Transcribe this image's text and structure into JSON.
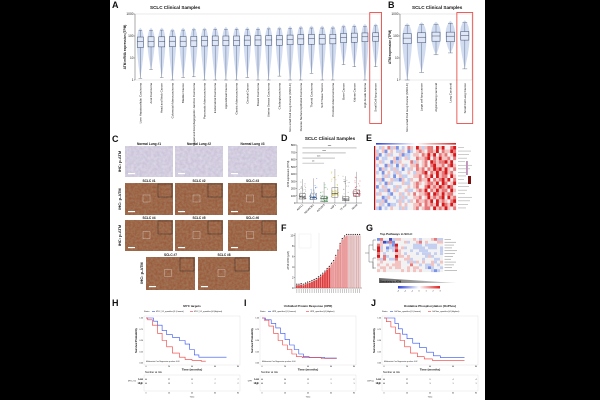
{
  "panels": {
    "A": {
      "label": "A"
    },
    "B": {
      "label": "B"
    },
    "C": {
      "label": "C"
    },
    "D": {
      "label": "D"
    },
    "E": {
      "label": "E"
    },
    "F": {
      "label": "F"
    },
    "G": {
      "label": "G"
    },
    "H": {
      "label": "H"
    },
    "I": {
      "label": "I"
    },
    "J": {
      "label": "J"
    }
  },
  "ihc": {
    "row_label": "IHC: p-ATM",
    "images": [
      {
        "title": "Normal Lung #1",
        "tissue": "normal"
      },
      {
        "title": "Normal Lung #2",
        "tissue": "normal"
      },
      {
        "title": "Normal Lung #3",
        "tissue": "normal"
      },
      {
        "title": "SCLC #1",
        "tissue": "tumor"
      },
      {
        "title": "SCLC #2",
        "tissue": "tumor"
      },
      {
        "title": "SCLC #3",
        "tissue": "tumor"
      },
      {
        "title": "SCLC #4",
        "tissue": "tumor"
      },
      {
        "title": "SCLC #5",
        "tissue": "tumor"
      },
      {
        "title": "SCLC #6",
        "tissue": "tumor"
      },
      {
        "title": "SCLC #7",
        "tissue": "tumor"
      },
      {
        "title": "SCLC #8",
        "tissue": "tumor"
      }
    ]
  },
  "chart_data": [
    {
      "id": "A",
      "type": "box-violin",
      "title": "SCLC Clinical Samples",
      "ylabel": "ATM mRNA expression (TPM)",
      "yscale": "log",
      "ylim": [
        1,
        1000
      ],
      "yticks": [
        "1",
        "10",
        "100",
        "1000"
      ],
      "highlight": "Small Cell lung cancer",
      "highlight_color": "#e53935",
      "categories": [
        "Liver Hepatocellular Carcinoma",
        "Anal Carcinoma",
        "Head and Neck Cancer",
        "Colorectal Adenocarcinoma",
        "Bladder Cancer",
        "Esophageal and Esophagogastric Junction Carcinoma",
        "Pancreatic Adenocarcinoma",
        "Endometrial Carcinoma",
        "Appendiceal Cancer",
        "Gastric Adenocarcinoma",
        "Cervical Cancer",
        "Breast Carcinoma",
        "Uterine Serous Carcinoma",
        "Cholangiocarcinoma",
        "Non-small Cell Lung Cancer (NSCLC)",
        "Ovarian Surface Epithelial Carcinoma",
        "Thyroid Carcinoma",
        "Soft Tissue Tumors",
        "Prostatic Adenocarcinoma",
        "Bone Cancer",
        "Kidney Cancer",
        "High-Grade Glioma",
        "Small Cell lung cancer"
      ],
      "boxes": [
        [
          1.2,
          30,
          55,
          90,
          180
        ],
        [
          3,
          32,
          56,
          92,
          180
        ],
        [
          1.3,
          32,
          57,
          92,
          185
        ],
        [
          1,
          33,
          58,
          94,
          170
        ],
        [
          1.3,
          33,
          58,
          95,
          185
        ],
        [
          1.4,
          34,
          60,
          96,
          190
        ],
        [
          1,
          35,
          62,
          98,
          190
        ],
        [
          1,
          36,
          63,
          100,
          200
        ],
        [
          1,
          36,
          64,
          100,
          200
        ],
        [
          1,
          36,
          64,
          100,
          200
        ],
        [
          1.3,
          37,
          65,
          102,
          200
        ],
        [
          1,
          37,
          66,
          104,
          200
        ],
        [
          1,
          38,
          66,
          104,
          210
        ],
        [
          1.5,
          38,
          67,
          105,
          210
        ],
        [
          1,
          40,
          70,
          110,
          220
        ],
        [
          1,
          42,
          74,
          115,
          230
        ],
        [
          2,
          42,
          75,
          118,
          230
        ],
        [
          1,
          43,
          76,
          118,
          230
        ],
        [
          1,
          44,
          78,
          120,
          230
        ],
        [
          5,
          50,
          85,
          130,
          260
        ],
        [
          4,
          52,
          88,
          135,
          270
        ],
        [
          1,
          55,
          92,
          138,
          270
        ],
        [
          4,
          58,
          95,
          140,
          290
        ]
      ]
    },
    {
      "id": "B",
      "type": "box-violin",
      "title": "SCLC Clinical Samples",
      "ylabel": "ATM expression (TPM)",
      "yscale": "log",
      "ylim": [
        1,
        1000
      ],
      "yticks": [
        "1",
        "10",
        "100",
        "1000"
      ],
      "highlight": "Small Cell Lung Cancer",
      "highlight_color": "#e53935",
      "categories": [
        "Non-small Cell Lung Cancer (NSCLC)",
        "Large cell lung cancer",
        "Atypical lung carcinoid",
        "Lung Carcinoid",
        "Small Cell Lung Cancer"
      ],
      "boxes": [
        [
          1,
          45,
          80,
          130,
          300
        ],
        [
          2.2,
          50,
          88,
          140,
          330
        ],
        [
          14,
          58,
          100,
          150,
          340
        ],
        [
          17,
          55,
          98,
          150,
          380
        ],
        [
          3.2,
          65,
          105,
          160,
          400
        ]
      ]
    },
    {
      "id": "D",
      "type": "box-jitter",
      "title": "SCLC Clinical Samples",
      "ylabel": "ATM expression (TPM)",
      "ylim": [
        0,
        800
      ],
      "yticks": [
        "0",
        "100",
        "200",
        "300",
        "400",
        "500",
        "600",
        "700",
        "800"
      ],
      "categories": [
        "ASCL1",
        "NEUROD1",
        "POU2F3",
        "YAP1",
        "TF-null",
        "Mixed"
      ],
      "colors": [
        "#6d6d6d",
        "#1e6fd9",
        "#2ea043",
        "#c9b400",
        "#8a8a8a",
        "#e0324a"
      ],
      "boxes": [
        [
          0,
          55,
          85,
          130,
          330
        ],
        [
          0,
          50,
          80,
          125,
          340
        ],
        [
          0,
          20,
          60,
          95,
          290
        ],
        [
          0,
          80,
          130,
          210,
          470
        ],
        [
          0,
          30,
          55,
          90,
          370
        ],
        [
          0,
          90,
          130,
          180,
          430
        ]
      ],
      "significance": [
        {
          "from": 0,
          "to": 2,
          "label": "**",
          "y": 550
        },
        {
          "from": 0,
          "to": 3,
          "label": "***",
          "y": 620
        },
        {
          "from": 0,
          "to": 4,
          "label": "***",
          "y": 690
        },
        {
          "from": 0,
          "to": 5,
          "label": "***",
          "y": 760
        }
      ]
    },
    {
      "id": "E",
      "type": "heatmap",
      "scale": [
        -3,
        3
      ],
      "rows": [
        "3243524132354364245536463356",
        "2341343224312345435546354465",
        "4132423341223443546463545346",
        "1322334123423354456354644535",
        "3423314243335243453654556463",
        "2331423134234453453564453564",
        "3142324231324354535465646435",
        "2313432423343244563546456453",
        "3324231342233445354636455364",
        "2413342214324335446354564635",
        "3231423334223454345546365346",
        "1342332423343453356454654653",
        "3224134233422345463546455364",
        "2433213342343534456365464553",
        "3312432324233445346454563645",
        "2241333242324354454636454356",
        "3423122343433445354546365464",
        "2132343324233453455364546435"
      ]
    },
    {
      "id": "F",
      "type": "bar",
      "ylabel": "ATMi IC50 (μM)",
      "ylim": [
        0,
        10.5
      ],
      "yticks": [
        "0",
        "2",
        "4",
        "6",
        "8",
        "10"
      ],
      "values": [
        0.5,
        0.5,
        0.6,
        0.5,
        0.7,
        0.9,
        1.0,
        1.2,
        1.4,
        1.6,
        1.9,
        2.2,
        2.6,
        3.0,
        3.5,
        3.9,
        4.5,
        5.0,
        6.0,
        7.0,
        8.3,
        9.2,
        9.7,
        10,
        10,
        10,
        10,
        10,
        10,
        10
      ]
    },
    {
      "id": "G",
      "type": "heatmap",
      "title": "Top Pathways in SCLC",
      "gradient_label": "Sensitivity to ATMi",
      "scale": [
        -3,
        3
      ],
      "colorbar_ticks": [
        "-3",
        "-2",
        "-1",
        "0",
        "1",
        "2",
        "3"
      ],
      "rows": [
        "1533024433334323334522",
        "3401513334233453433344",
        "5433216333332223222233",
        "6231225342332222322232",
        "6432326433323322233332",
        "5323334432333232223232",
        "6352336443433333242333",
        "4253225334423332333223",
        "3433334433242434334234",
        "4334344433353323224323",
        "3443434433434433212332",
        "4343333343434343332123"
      ]
    },
    {
      "id": "H",
      "type": "kaplan-meier",
      "title": "MYC targets",
      "legend": [
        "Strata",
        "MYC_V1_quartile=Q1 (Lowest)",
        "MYC_V1_quartile=Q4 (Highest)"
      ],
      "xlabel": "Time (months)",
      "ylabel": "Survival Probability",
      "xlim": [
        0,
        80
      ],
      "xticks": [
        "0",
        "20",
        "40",
        "60",
        "80"
      ],
      "yticks": [
        "0.00",
        "0.25",
        "0.50",
        "0.75",
        "1.00"
      ],
      "pvalue_text": "Multivariate Cox Regression p-value: 0.03",
      "risk_title": "Number at risk",
      "risk_var": "MYC_V1",
      "risk_xlabel": "Time",
      "series": [
        {
          "name": "Low",
          "color": "#2f4ff5",
          "points": [
            [
              0,
              1
            ],
            [
              5,
              1
            ],
            [
              8,
              0.93
            ],
            [
              12,
              0.84
            ],
            [
              16,
              0.72
            ],
            [
              20,
              0.63
            ],
            [
              26,
              0.57
            ],
            [
              32,
              0.5
            ],
            [
              36,
              0.42
            ],
            [
              40,
              0.3
            ],
            [
              44,
              0.18
            ],
            [
              48,
              0.13
            ],
            [
              70,
              0.13
            ]
          ],
          "at_risk": [
            "40",
            "27",
            "11",
            "7",
            "7"
          ]
        },
        {
          "name": "High",
          "color": "#f03838",
          "points": [
            [
              0,
              1
            ],
            [
              3,
              0.96
            ],
            [
              8,
              0.84
            ],
            [
              12,
              0.66
            ],
            [
              16,
              0.5
            ],
            [
              20,
              0.36
            ],
            [
              26,
              0.22
            ],
            [
              32,
              0.13
            ],
            [
              36,
              0.08
            ],
            [
              44,
              0.06
            ],
            [
              52,
              0.04
            ]
          ],
          "at_risk": [
            "40",
            "13",
            "3",
            "2",
            "2"
          ]
        }
      ]
    },
    {
      "id": "I",
      "type": "kaplan-meier",
      "title": "Unfolded Protein Response (UPR)",
      "legend": [
        "Strata",
        "UPR_quartile=Q1 (Lowest)",
        "UPR_quartile=Q4 (Highest)"
      ],
      "xlabel": "Time (months)",
      "ylabel": "Survival Probability",
      "xlim": [
        0,
        80
      ],
      "xticks": [
        "0",
        "20",
        "40",
        "60",
        "80"
      ],
      "yticks": [
        "0.00",
        "0.25",
        "0.50",
        "0.75",
        "1.00"
      ],
      "pvalue_text": "Multivariate Cox Regression p-value: 0.04",
      "risk_title": "Number at risk",
      "risk_var": "UPR",
      "risk_xlabel": "Time",
      "series": [
        {
          "name": "Low",
          "color": "#2f4ff5",
          "points": [
            [
              0,
              1
            ],
            [
              6,
              0.96
            ],
            [
              10,
              0.88
            ],
            [
              14,
              0.78
            ],
            [
              18,
              0.66
            ],
            [
              22,
              0.52
            ],
            [
              26,
              0.4
            ],
            [
              30,
              0.3
            ],
            [
              34,
              0.2
            ],
            [
              38,
              0.14
            ],
            [
              44,
              0.12
            ],
            [
              65,
              0.11
            ]
          ],
          "at_risk": [
            "40",
            "30",
            "12",
            "2",
            "2"
          ]
        },
        {
          "name": "High",
          "color": "#f03838",
          "points": [
            [
              0,
              1
            ],
            [
              4,
              0.95
            ],
            [
              8,
              0.82
            ],
            [
              12,
              0.66
            ],
            [
              16,
              0.5
            ],
            [
              20,
              0.4
            ],
            [
              24,
              0.3
            ],
            [
              28,
              0.2
            ],
            [
              32,
              0.14
            ],
            [
              38,
              0.12
            ],
            [
              65,
              0.1
            ]
          ],
          "at_risk": [
            "40",
            "22",
            "8",
            "1",
            "1"
          ]
        }
      ]
    },
    {
      "id": "J",
      "type": "kaplan-meier",
      "title": "Oxidative Phosphorylation (OxPhos)",
      "legend": [
        "Strata",
        "OxPhos_quartile=Q1 (Lowest)",
        "OxPhos_quartile=Q4 (Highest)"
      ],
      "xlabel": "Time (months)",
      "ylabel": "Survival Probability",
      "xlim": [
        0,
        80
      ],
      "xticks": [
        "0",
        "20",
        "40",
        "60",
        "80"
      ],
      "yticks": [
        "0.00",
        "0.25",
        "0.50",
        "0.75",
        "1.00"
      ],
      "pvalue_text": "Multivariate Cox Regression p-value: 0.02",
      "risk_title": "Number at risk",
      "risk_var": "OxPhos",
      "risk_xlabel": "Time",
      "series": [
        {
          "name": "Low",
          "color": "#2f4ff5",
          "points": [
            [
              0,
              1
            ],
            [
              8,
              1
            ],
            [
              11,
              0.88
            ],
            [
              14,
              0.76
            ],
            [
              18,
              0.64
            ],
            [
              22,
              0.54
            ],
            [
              28,
              0.44
            ],
            [
              34,
              0.34
            ],
            [
              40,
              0.24
            ],
            [
              46,
              0.16
            ],
            [
              52,
              0.12
            ],
            [
              70,
              0.12
            ]
          ],
          "at_risk": [
            "40",
            "27",
            "9",
            "4",
            "4"
          ]
        },
        {
          "name": "High",
          "color": "#f03838",
          "points": [
            [
              0,
              1
            ],
            [
              4,
              0.92
            ],
            [
              8,
              0.8
            ],
            [
              12,
              0.66
            ],
            [
              16,
              0.5
            ],
            [
              20,
              0.36
            ],
            [
              26,
              0.22
            ],
            [
              32,
              0.14
            ],
            [
              38,
              0.09
            ],
            [
              46,
              0.06
            ],
            [
              70,
              0.06
            ]
          ],
          "at_risk": [
            "40",
            "15",
            "3",
            "1",
            "1"
          ]
        }
      ]
    }
  ]
}
